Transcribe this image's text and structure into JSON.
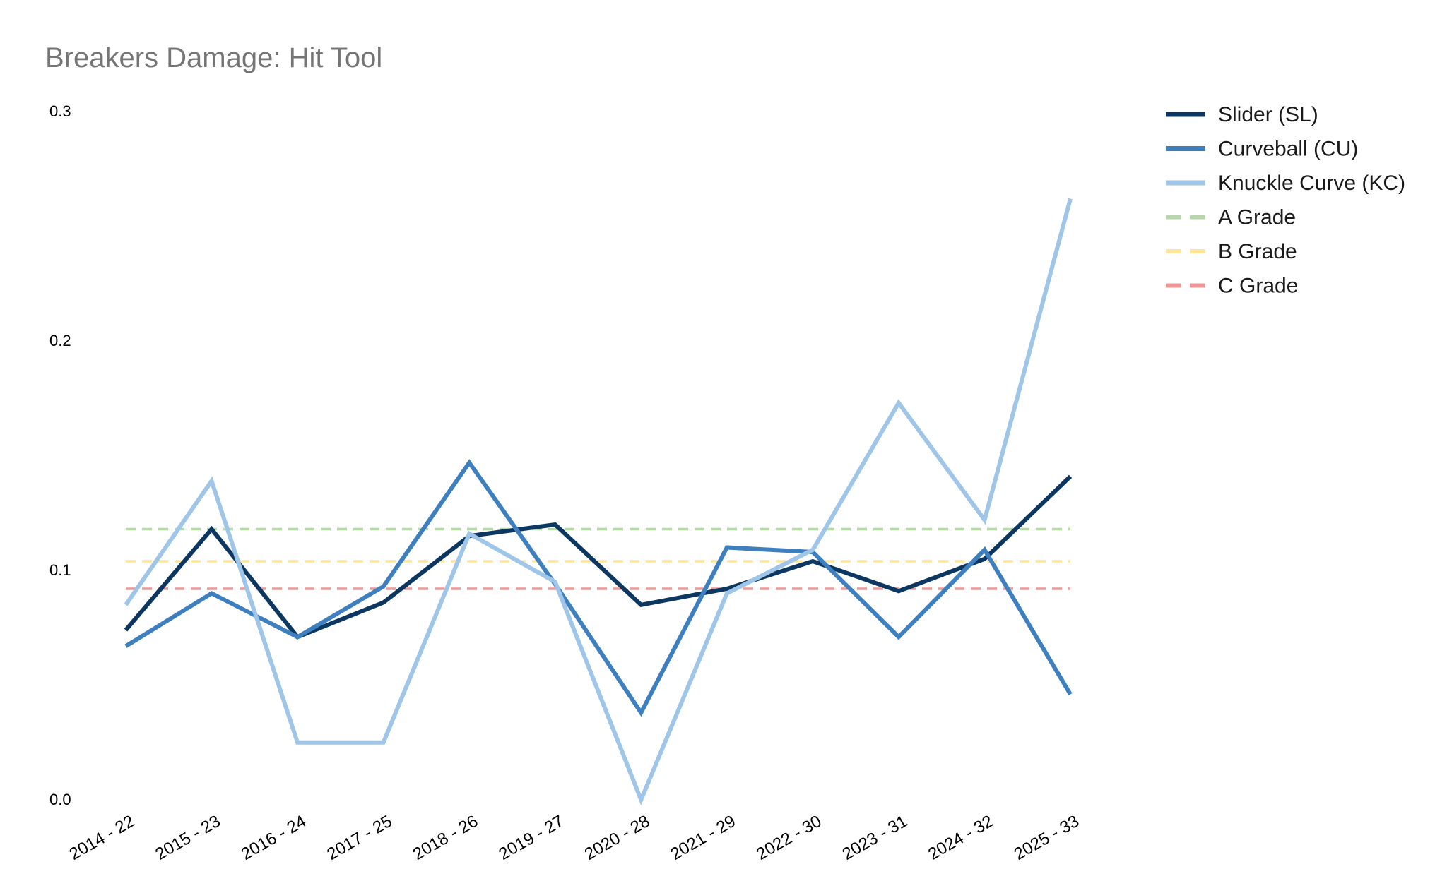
{
  "chart_data": {
    "type": "line",
    "title": "Breakers Damage: Hit Tool",
    "xlabel": "",
    "ylabel": "",
    "categories": [
      "2014 - 22",
      "2015 - 23",
      "2016 - 24",
      "2017 - 25",
      "2018 - 26",
      "2019 - 27",
      "2020 - 28",
      "2021 - 29",
      "2022 - 30",
      "2023 - 31",
      "2024 - 32",
      "2025 - 33"
    ],
    "ylim": [
      0,
      0.3
    ],
    "yticks": [
      0.0,
      0.1,
      0.2,
      0.3
    ],
    "ytick_labels": [
      "0.0",
      "0.1",
      "0.2",
      "0.3"
    ],
    "grid": false,
    "legend_position": "top-right",
    "series": [
      {
        "name": "Slider (SL)",
        "color": "#0b3761",
        "style": "solid",
        "values": [
          0.074,
          0.118,
          0.071,
          0.086,
          0.115,
          0.12,
          0.085,
          0.092,
          0.104,
          0.091,
          0.105,
          0.141
        ]
      },
      {
        "name": "Curveball (CU)",
        "color": "#3d7fbf",
        "style": "solid",
        "values": [
          0.067,
          0.09,
          0.071,
          0.093,
          0.147,
          0.094,
          0.038,
          0.11,
          0.108,
          0.071,
          0.109,
          0.046
        ]
      },
      {
        "name": "Knuckle Curve (KC)",
        "color": "#9fc5e8",
        "style": "solid",
        "values": [
          0.085,
          0.139,
          0.025,
          0.025,
          0.116,
          0.095,
          0.0,
          0.09,
          0.109,
          0.173,
          0.122,
          0.262
        ]
      }
    ],
    "reference_lines": [
      {
        "name": "A Grade",
        "value": 0.118,
        "color": "#b6d7a8",
        "style": "dashed"
      },
      {
        "name": "B Grade",
        "value": 0.104,
        "color": "#ffe599",
        "style": "dashed"
      },
      {
        "name": "C Grade",
        "value": 0.092,
        "color": "#ea9999",
        "style": "dashed"
      }
    ],
    "colors": {
      "title": "#757575",
      "ticks": "#000000",
      "legend_text": "#1a1a1a"
    }
  }
}
